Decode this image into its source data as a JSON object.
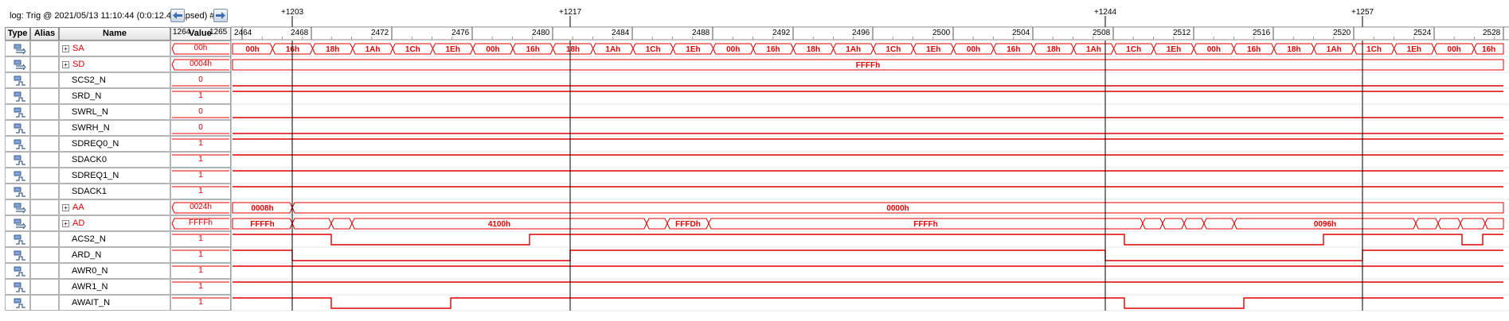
{
  "log_label": "log: Trig @ 2021/05/13 11:10:44 (0:0:12.4 elapsed) #",
  "columns": {
    "type": "Type",
    "alias": "Alias",
    "name": "Name",
    "value": "Value"
  },
  "value_col_ticks": {
    "left": "1264",
    "right": "1265"
  },
  "cursors": [
    "+1203",
    "+1217",
    "+1244",
    "+1257"
  ],
  "ruler_ticks": [
    "2464",
    "2468",
    "2472",
    "2476",
    "2480",
    "2484",
    "2488",
    "2492",
    "2496",
    "2500",
    "2504",
    "2508",
    "2512",
    "2516",
    "2520",
    "2524",
    "2528"
  ],
  "icons": {
    "bus": "bus-icon",
    "bit": "bit-signal-icon",
    "left": "arrow-left-icon",
    "right": "arrow-right-icon"
  },
  "colors": {
    "wave": "#e00000",
    "cursor": "#000000"
  },
  "signals": [
    {
      "name": "SA",
      "kind": "bus",
      "value": "00h",
      "bus_labels": [
        "00h",
        "16h",
        "18h",
        "1Ah",
        "1Ch",
        "1Eh",
        "00h",
        "16h",
        "18h",
        "1Ah",
        "1Ch",
        "1Eh",
        "00h",
        "16h",
        "18h",
        "1Ah",
        "1Ch",
        "1Eh",
        "00h",
        "16h",
        "18h",
        "1Ah",
        "1Ch",
        "1Eh",
        "00h",
        "16h",
        "18h",
        "1Ah",
        "1Ch",
        "1Eh",
        "00h",
        "16h"
      ]
    },
    {
      "name": "SD",
      "kind": "bus",
      "value": "0004h",
      "bus_labels": [
        "FFFFh"
      ]
    },
    {
      "name": "SCS2_N",
      "kind": "bit",
      "value": "0"
    },
    {
      "name": "SRD_N",
      "kind": "bit",
      "value": "1"
    },
    {
      "name": "SWRL_N",
      "kind": "bit",
      "value": "0"
    },
    {
      "name": "SWRH_N",
      "kind": "bit",
      "value": "0"
    },
    {
      "name": "SDREQ0_N",
      "kind": "bit",
      "value": "1"
    },
    {
      "name": "SDACK0",
      "kind": "bit",
      "value": "1"
    },
    {
      "name": "SDREQ1_N",
      "kind": "bit",
      "value": "1"
    },
    {
      "name": "SDACK1",
      "kind": "bit",
      "value": "1"
    },
    {
      "name": "AA",
      "kind": "bus",
      "value": "0024h",
      "bus_labels": [
        "0008h",
        "0000h"
      ]
    },
    {
      "name": "AD",
      "kind": "bus",
      "value": "FFFFh",
      "bus_labels": [
        "FFFFh",
        "4100h",
        "FFFDh",
        "FFFFh",
        "0096h"
      ]
    },
    {
      "name": "ACS2_N",
      "kind": "bit",
      "value": "1"
    },
    {
      "name": "ARD_N",
      "kind": "bit",
      "value": "1"
    },
    {
      "name": "AWR0_N",
      "kind": "bit",
      "value": "1"
    },
    {
      "name": "AWR1_N",
      "kind": "bit",
      "value": "1"
    },
    {
      "name": "AWAIT_N",
      "kind": "bit",
      "value": "1"
    }
  ]
}
